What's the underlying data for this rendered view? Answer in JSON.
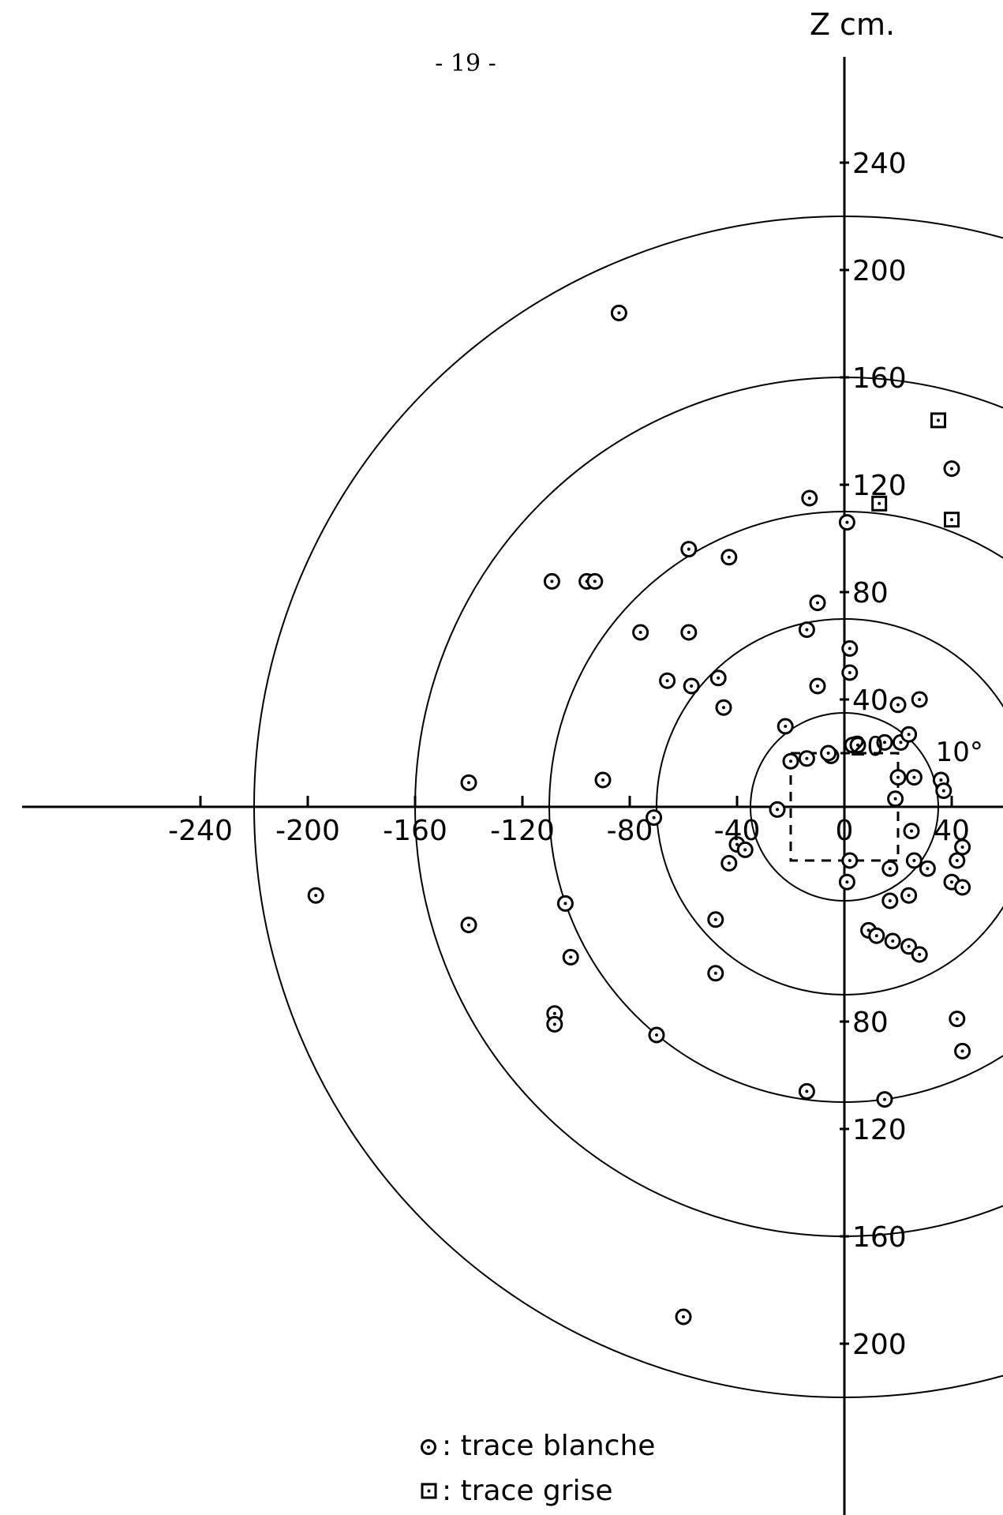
{
  "page_number": "- 19 -",
  "chart_data": {
    "type": "scatter",
    "title": "",
    "xlabel": "",
    "ylabel": "Z cm.",
    "xlim": [
      -250,
      40
    ],
    "ylim": [
      -230,
      240
    ],
    "x_ticks": [
      -240,
      -200,
      -160,
      -120,
      -80,
      -40,
      0,
      40
    ],
    "x_tick_labels": [
      "-240",
      "-200",
      "-160",
      "-120",
      "-80",
      "-40",
      "0",
      "40"
    ],
    "y_ticks": [
      240,
      200,
      160,
      120,
      80,
      40,
      -80,
      -120,
      -160,
      -200
    ],
    "y_tick_labels": [
      "240",
      "200",
      "160",
      "120",
      "80",
      "40",
      "80",
      "120",
      "160",
      "200"
    ],
    "grid": false,
    "circles_radii": [
      35,
      70,
      110,
      160,
      220
    ],
    "dashed_rectangle": {
      "x1": -20,
      "y1": -20,
      "x2": 20,
      "y2": 20
    },
    "annotations": [
      {
        "text": "10°",
        "x": 34,
        "y": 20
      },
      {
        "text": "20",
        "x": 2,
        "y": 22
      }
    ],
    "legend": {
      "position": "bottom-left",
      "entries": [
        {
          "symbol": "circle-dot",
          "label": ": trace blanche"
        },
        {
          "symbol": "square-dot",
          "label": ": trace grise"
        }
      ]
    },
    "series": [
      {
        "name": "trace blanche",
        "marker": "circle-dot",
        "points": [
          [
            -84,
            184
          ],
          [
            40,
            126
          ],
          [
            -13,
            115
          ],
          [
            1,
            106
          ],
          [
            -58,
            96
          ],
          [
            -43,
            93
          ],
          [
            -109,
            84
          ],
          [
            -96,
            84
          ],
          [
            -93,
            84
          ],
          [
            -10,
            76
          ],
          [
            -76,
            65
          ],
          [
            -58,
            65
          ],
          [
            -14,
            66
          ],
          [
            2,
            59
          ],
          [
            2,
            50
          ],
          [
            -66,
            47
          ],
          [
            -57,
            45
          ],
          [
            -47,
            48
          ],
          [
            -10,
            45
          ],
          [
            -45,
            37
          ],
          [
            20,
            38
          ],
          [
            28,
            40
          ],
          [
            -22,
            30
          ],
          [
            15,
            24
          ],
          [
            21,
            24
          ],
          [
            24,
            27
          ],
          [
            3,
            23
          ],
          [
            5,
            23
          ],
          [
            -5,
            19
          ],
          [
            -6,
            20
          ],
          [
            -20,
            17
          ],
          [
            -14,
            18
          ],
          [
            -140,
            9
          ],
          [
            -90,
            10
          ],
          [
            20,
            11
          ],
          [
            36,
            10
          ],
          [
            26,
            11
          ],
          [
            37,
            6
          ],
          [
            19,
            3
          ],
          [
            -25,
            -1
          ],
          [
            -71,
            -4
          ],
          [
            25,
            -9
          ],
          [
            -40,
            -14
          ],
          [
            -37,
            -16
          ],
          [
            -43,
            -21
          ],
          [
            2,
            -20
          ],
          [
            17,
            -23
          ],
          [
            26,
            -20
          ],
          [
            31,
            -23
          ],
          [
            42,
            -20
          ],
          [
            44,
            -15
          ],
          [
            40,
            -28
          ],
          [
            44,
            -30
          ],
          [
            1,
            -28
          ],
          [
            -197,
            -33
          ],
          [
            -104,
            -36
          ],
          [
            17,
            -35
          ],
          [
            24,
            -33
          ],
          [
            -140,
            -44
          ],
          [
            -48,
            -42
          ],
          [
            9,
            -46
          ],
          [
            12,
            -48
          ],
          [
            18,
            -50
          ],
          [
            24,
            -52
          ],
          [
            28,
            -55
          ],
          [
            -102,
            -56
          ],
          [
            -48,
            -62
          ],
          [
            -108,
            -77
          ],
          [
            -108,
            -81
          ],
          [
            -70,
            -85
          ],
          [
            42,
            -79
          ],
          [
            44,
            -91
          ],
          [
            -14,
            -106
          ],
          [
            15,
            -109
          ],
          [
            -60,
            -190
          ]
        ]
      },
      {
        "name": "trace grise",
        "marker": "square-dot",
        "points": [
          [
            35,
            144
          ],
          [
            13,
            113
          ],
          [
            40,
            107
          ]
        ]
      }
    ]
  }
}
